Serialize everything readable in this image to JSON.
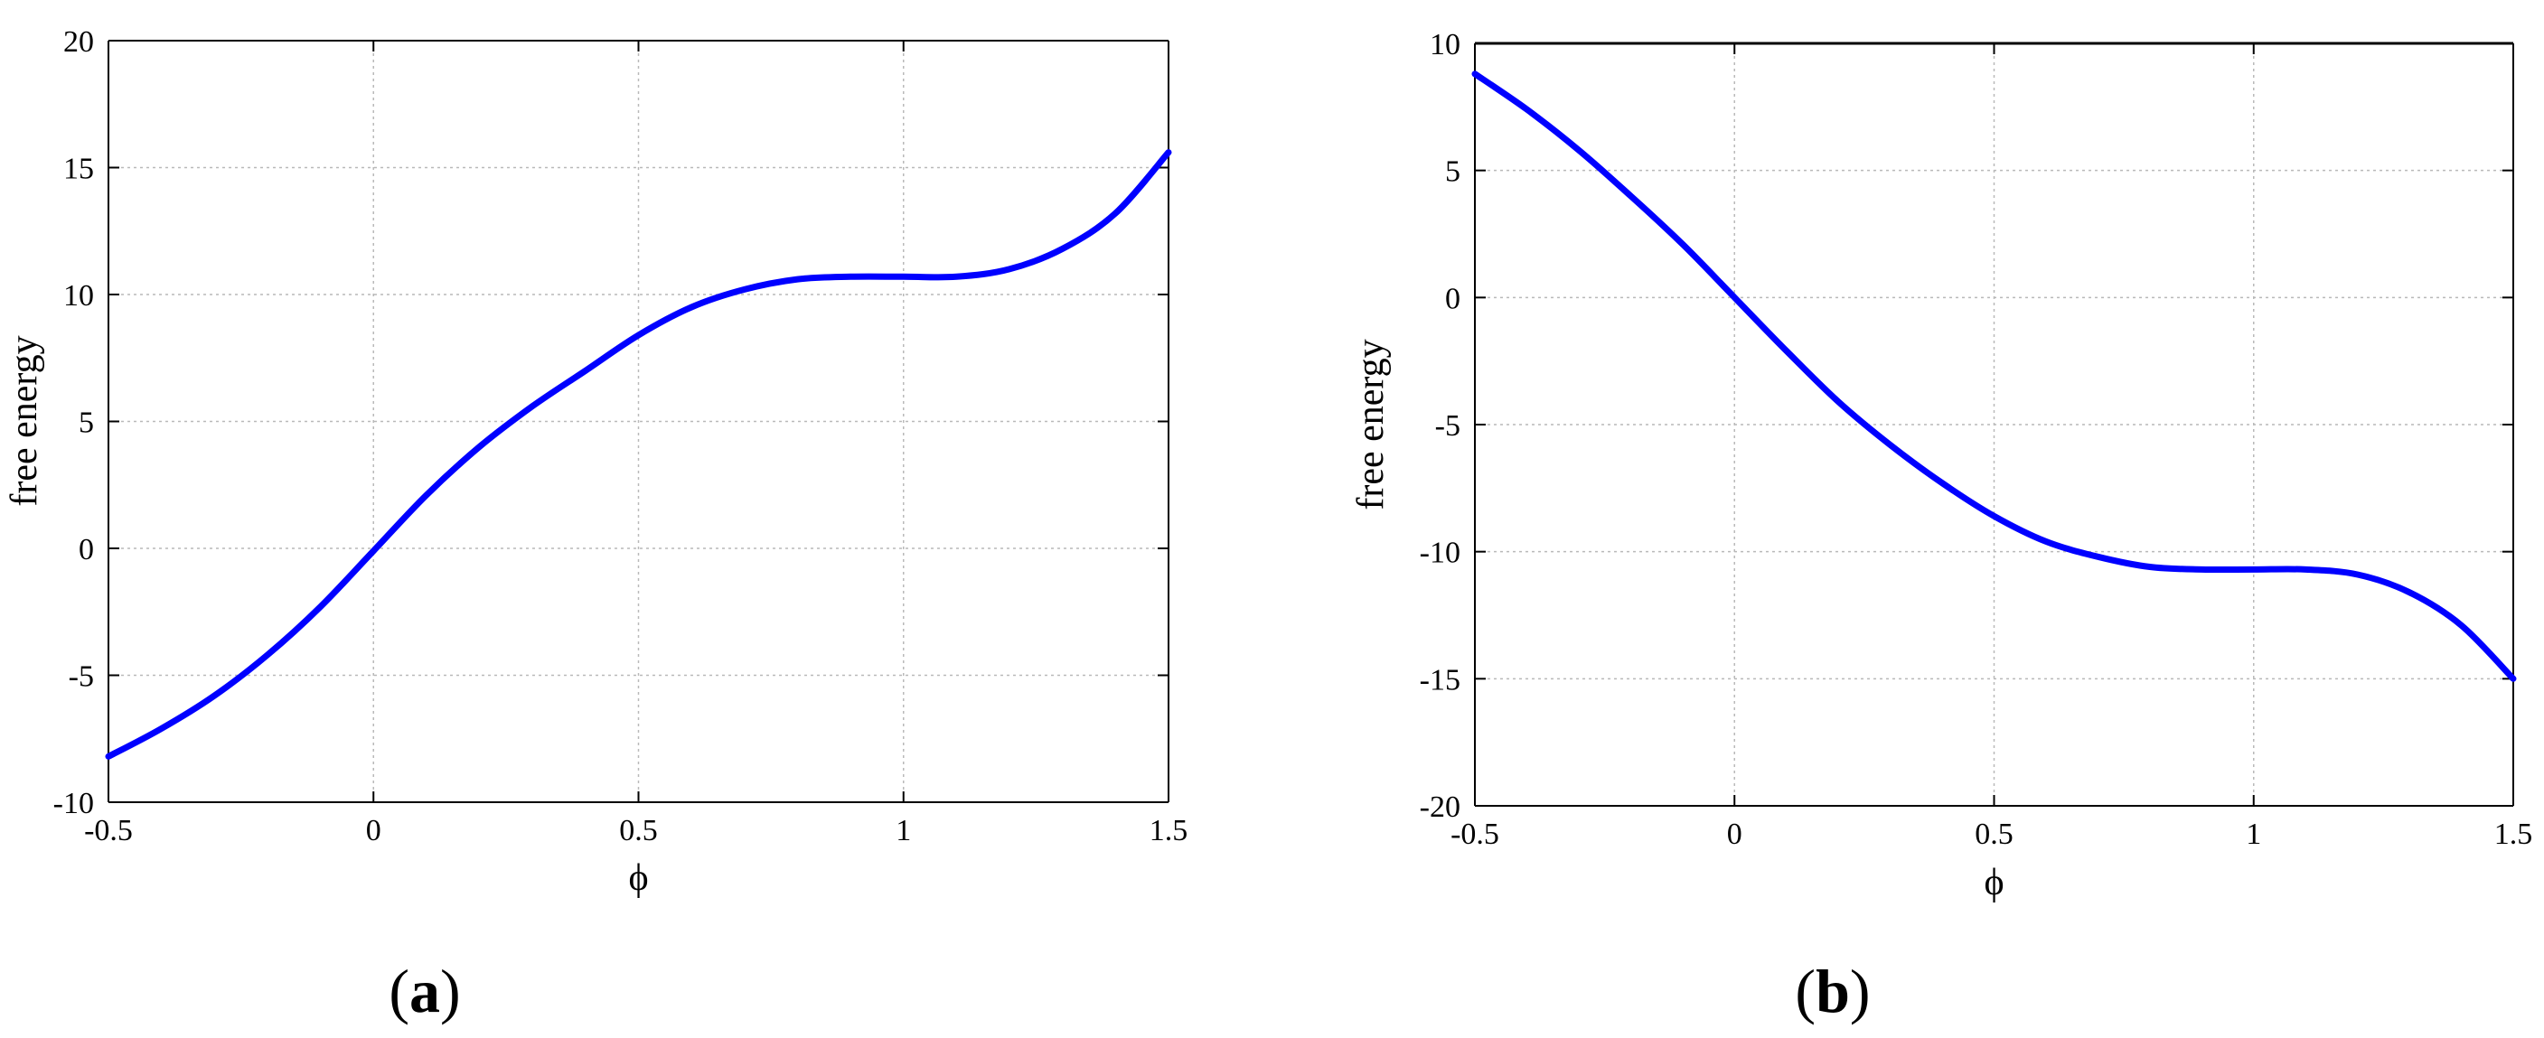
{
  "chart_data": [
    {
      "type": "line",
      "panel_label": "a",
      "title": "",
      "xlabel": "ϕ",
      "ylabel": "free energy",
      "xlim": [
        -0.5,
        1.5
      ],
      "ylim": [
        -10,
        20
      ],
      "xticks": [
        "-0.5",
        "0",
        "0.5",
        "1",
        "1.5"
      ],
      "yticks": [
        "-10",
        "-5",
        "0",
        "5",
        "10",
        "15",
        "20"
      ],
      "grid": true,
      "color": "#0000ff",
      "series": [
        {
          "x": [
            -0.5,
            -0.4,
            -0.3,
            -0.2,
            -0.1,
            0.0,
            0.1,
            0.2,
            0.3,
            0.4,
            0.5,
            0.6,
            0.7,
            0.8,
            0.9,
            1.0,
            1.1,
            1.2,
            1.3,
            1.4,
            1.5
          ],
          "values": [
            -8.2,
            -7.1,
            -5.8,
            -4.2,
            -2.3,
            -0.1,
            2.1,
            4.0,
            5.6,
            7.0,
            8.4,
            9.5,
            10.2,
            10.6,
            10.7,
            10.7,
            10.7,
            11.0,
            11.8,
            13.2,
            15.6
          ]
        }
      ]
    },
    {
      "type": "line",
      "panel_label": "b",
      "title": "",
      "xlabel": "ϕ",
      "ylabel": "free energy",
      "xlim": [
        -0.5,
        1.5
      ],
      "ylim": [
        -20,
        10
      ],
      "xticks": [
        "-0.5",
        "0",
        "0.5",
        "1",
        "1.5"
      ],
      "yticks": [
        "-20",
        "-15",
        "-10",
        "-5",
        "0",
        "5",
        "10"
      ],
      "grid": true,
      "color": "#0000ff",
      "series": [
        {
          "x": [
            -0.5,
            -0.4,
            -0.3,
            -0.2,
            -0.1,
            0.0,
            0.1,
            0.2,
            0.3,
            0.4,
            0.5,
            0.6,
            0.7,
            0.8,
            0.9,
            1.0,
            1.1,
            1.2,
            1.3,
            1.4,
            1.5
          ],
          "values": [
            8.8,
            7.4,
            5.8,
            4.0,
            2.1,
            0.0,
            -2.1,
            -4.1,
            -5.8,
            -7.3,
            -8.6,
            -9.6,
            -10.2,
            -10.6,
            -10.7,
            -10.7,
            -10.7,
            -10.9,
            -11.6,
            -12.9,
            -15.0
          ]
        }
      ]
    }
  ]
}
